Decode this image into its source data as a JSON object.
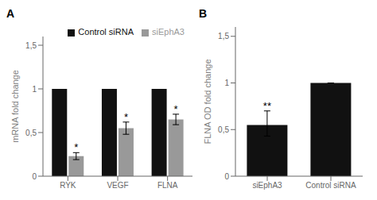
{
  "chart_data": [
    {
      "type": "bar",
      "title": "A",
      "categories": [
        "RYK",
        "VEGF",
        "FLNA"
      ],
      "series": [
        {
          "name": "Control siRNA",
          "color": "#111111",
          "values": [
            1.0,
            1.0,
            1.0
          ]
        },
        {
          "name": "siEphA3",
          "color": "#999999",
          "values": [
            0.23,
            0.55,
            0.65
          ],
          "errors": [
            0.04,
            0.07,
            0.06
          ]
        }
      ],
      "ylabel": "mRNA fold change",
      "ylim": [
        0,
        1.6
      ],
      "yticks": [
        0,
        {
          "value": 0.5,
          "label": "0,5"
        },
        1,
        {
          "value": 1.5,
          "label": "1,5"
        }
      ],
      "legend": "upper right",
      "annotations": [
        {
          "category": "RYK",
          "series": "siEphA3",
          "text": "*"
        },
        {
          "category": "VEGF",
          "series": "siEphA3",
          "text": "*"
        },
        {
          "category": "FLNA",
          "series": "siEphA3",
          "text": "*"
        }
      ]
    },
    {
      "type": "bar",
      "title": "B",
      "categories": [
        "siEphA3",
        "Control siRNA"
      ],
      "values": [
        0.55,
        1.0
      ],
      "errors_up": [
        0.15,
        0.0
      ],
      "errors_down": [
        0.12,
        0.0
      ],
      "color": "#111111",
      "ylabel": "FLNA OD fold change",
      "ylim": [
        0,
        1.6
      ],
      "yticks": [
        0,
        {
          "value": 0.5,
          "label": "0,5"
        },
        1,
        {
          "value": 1.5,
          "label": "1,5"
        }
      ],
      "annotations": [
        {
          "category": "siEphA3",
          "text": "**"
        }
      ]
    }
  ]
}
